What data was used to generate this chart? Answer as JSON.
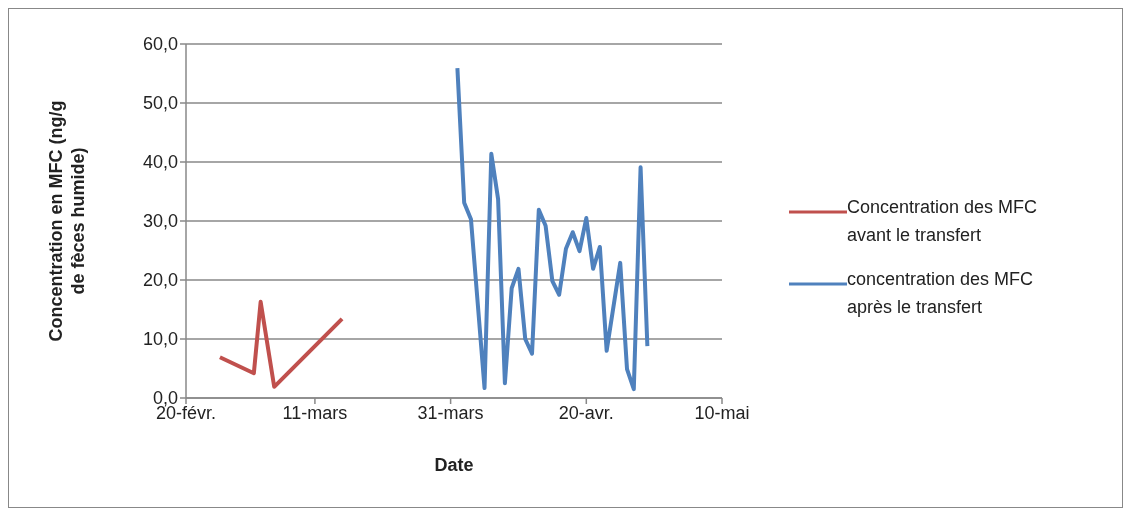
{
  "chart_data": {
    "type": "line",
    "xlabel": "Date",
    "ylabel": "Concentration en MFC (ng/g de fèces humide)",
    "xlim": [
      "--02-20",
      "--05-10"
    ],
    "xticks": [
      {
        "value": "--02-20",
        "label": "20-févr."
      },
      {
        "value": "--03-11",
        "label": "11-mars"
      },
      {
        "value": "--03-31",
        "label": "31-mars"
      },
      {
        "value": "--04-20",
        "label": "20-avr."
      },
      {
        "value": "--05-10",
        "label": "10-mai"
      }
    ],
    "ylim": [
      0,
      60
    ],
    "yticks": [
      {
        "value": 0,
        "label": "0,0"
      },
      {
        "value": 10,
        "label": "10,0"
      },
      {
        "value": 20,
        "label": "20,0"
      },
      {
        "value": 30,
        "label": "30,0"
      },
      {
        "value": 40,
        "label": "40,0"
      },
      {
        "value": 50,
        "label": "50,0"
      },
      {
        "value": 60,
        "label": "60,0"
      }
    ],
    "grid": "y",
    "legend": "right",
    "marker": "none",
    "line_style": "solid",
    "series": [
      {
        "name": "Concentration des MFC avant le transfert",
        "color": "#c0504d",
        "x": [
          "--02-25",
          "--03-02",
          "--03-03",
          "--03-05",
          "--03-15"
        ],
        "values": [
          6.9,
          4.2,
          16.3,
          1.9,
          13.4
        ]
      },
      {
        "name": "concentration des MFC après le transfert",
        "color": "#4f81bd",
        "x": [
          "--04-01",
          "--04-02",
          "--04-03",
          "--04-04",
          "--04-05",
          "--04-06",
          "--04-07",
          "--04-08",
          "--04-09",
          "--04-10",
          "--04-11",
          "--04-12",
          "--04-13",
          "--04-14",
          "--04-15",
          "--04-16",
          "--04-17",
          "--04-18",
          "--04-19",
          "--04-20",
          "--04-21",
          "--04-22",
          "--04-23",
          "--04-25",
          "--04-26",
          "--04-27",
          "--04-28",
          "--04-29"
        ],
        "values": [
          55.9,
          33.1,
          30.3,
          16,
          1.7,
          41.4,
          33.7,
          2.5,
          18.6,
          21.9,
          10,
          7.5,
          31.9,
          29.2,
          19.8,
          17.5,
          25.3,
          28.1,
          24.9,
          30.5,
          21.9,
          25.6,
          8,
          22.9,
          4.9,
          1.5,
          39.1,
          8.8
        ]
      }
    ]
  }
}
